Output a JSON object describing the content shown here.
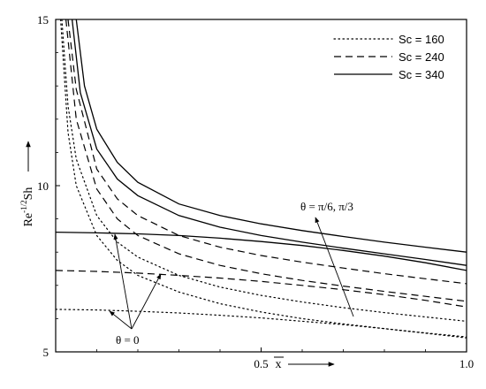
{
  "chart_data": {
    "type": "line",
    "xlabel": "x",
    "ylabel": "Re-1/2Sh",
    "xlim": [
      0.0,
      1.0
    ],
    "ylim": [
      5,
      15
    ],
    "x_ticks": [
      {
        "value": 0.5,
        "label": "0.5"
      },
      {
        "value": 1.0,
        "label": "1.0"
      }
    ],
    "y_ticks": [
      {
        "value": 5,
        "label": "5"
      },
      {
        "value": 10,
        "label": "10"
      },
      {
        "value": 15,
        "label": "15"
      }
    ],
    "legend": {
      "position": "top-right",
      "entries": [
        {
          "label": "Sc = 160",
          "dash": "dotted"
        },
        {
          "label": "Sc = 240",
          "dash": "dashed"
        },
        {
          "label": "Sc = 340",
          "dash": "solid"
        }
      ]
    },
    "annotations": [
      {
        "text": "θ = π/6, π/3"
      },
      {
        "text": "θ = 0"
      }
    ],
    "series": [
      {
        "sc": "Sc = 340",
        "dash": "solid",
        "theta": "0",
        "x": [
          0.0,
          0.1,
          0.2,
          0.3,
          0.4,
          0.5,
          0.6,
          0.7,
          0.8,
          0.9,
          1.0
        ],
        "y": [
          8.6,
          8.58,
          8.55,
          8.5,
          8.42,
          8.32,
          8.2,
          8.05,
          7.88,
          7.68,
          7.45
        ]
      },
      {
        "sc": "Sc = 240",
        "dash": "dashed",
        "theta": "0",
        "x": [
          0.0,
          0.1,
          0.2,
          0.3,
          0.4,
          0.5,
          0.6,
          0.7,
          0.8,
          0.9,
          1.0
        ],
        "y": [
          7.45,
          7.42,
          7.37,
          7.3,
          7.22,
          7.12,
          7.0,
          6.87,
          6.72,
          6.55,
          6.35
        ]
      },
      {
        "sc": "Sc = 160",
        "dash": "dotted",
        "theta": "0",
        "x": [
          0.0,
          0.1,
          0.2,
          0.3,
          0.4,
          0.5,
          0.6,
          0.7,
          0.8,
          0.9,
          1.0
        ],
        "y": [
          6.28,
          6.26,
          6.22,
          6.17,
          6.1,
          6.02,
          5.92,
          5.82,
          5.7,
          5.56,
          5.42
        ]
      },
      {
        "sc": "Sc = 340",
        "dash": "solid",
        "theta": "π/6",
        "x": [
          0.05,
          0.07,
          0.1,
          0.15,
          0.2,
          0.3,
          0.4,
          0.5,
          0.6,
          0.7,
          0.8,
          0.9,
          1.0
        ],
        "y": [
          15.0,
          13.0,
          11.7,
          10.7,
          10.1,
          9.45,
          9.1,
          8.85,
          8.65,
          8.47,
          8.3,
          8.15,
          8.0
        ]
      },
      {
        "sc": "Sc = 340",
        "dash": "solid",
        "theta": "π/3",
        "x": [
          0.04,
          0.06,
          0.1,
          0.15,
          0.2,
          0.3,
          0.4,
          0.5,
          0.6,
          0.7,
          0.8,
          0.9,
          1.0
        ],
        "y": [
          15.0,
          12.8,
          11.1,
          10.2,
          9.7,
          9.1,
          8.75,
          8.5,
          8.3,
          8.12,
          7.95,
          7.78,
          7.6
        ]
      },
      {
        "sc": "Sc = 240",
        "dash": "dashed",
        "theta": "π/6",
        "x": [
          0.03,
          0.05,
          0.1,
          0.15,
          0.2,
          0.3,
          0.4,
          0.5,
          0.6,
          0.7,
          0.8,
          0.9,
          1.0
        ],
        "y": [
          15.0,
          12.9,
          10.5,
          9.6,
          9.1,
          8.5,
          8.15,
          7.9,
          7.7,
          7.52,
          7.35,
          7.2,
          7.05
        ]
      },
      {
        "sc": "Sc = 240",
        "dash": "dashed",
        "theta": "π/3",
        "x": [
          0.025,
          0.05,
          0.1,
          0.15,
          0.2,
          0.3,
          0.4,
          0.5,
          0.6,
          0.7,
          0.8,
          0.9,
          1.0
        ],
        "y": [
          15.0,
          12.0,
          9.9,
          9.0,
          8.5,
          7.95,
          7.6,
          7.35,
          7.15,
          6.98,
          6.82,
          6.67,
          6.52
        ]
      },
      {
        "sc": "Sc = 160",
        "dash": "dotted",
        "theta": "π/6",
        "x": [
          0.015,
          0.03,
          0.05,
          0.1,
          0.15,
          0.2,
          0.3,
          0.4,
          0.5,
          0.6,
          0.7,
          0.8,
          0.9,
          1.0
        ],
        "y": [
          15.0,
          12.4,
          10.8,
          9.1,
          8.3,
          7.85,
          7.3,
          6.95,
          6.7,
          6.5,
          6.33,
          6.18,
          6.05,
          5.92
        ]
      },
      {
        "sc": "Sc = 160",
        "dash": "dotted",
        "theta": "π/3",
        "x": [
          0.012,
          0.03,
          0.05,
          0.1,
          0.15,
          0.2,
          0.3,
          0.4,
          0.5,
          0.6,
          0.7,
          0.8,
          0.9,
          1.0
        ],
        "y": [
          15.0,
          11.6,
          10.0,
          8.5,
          7.75,
          7.3,
          6.8,
          6.45,
          6.2,
          6.0,
          5.84,
          5.7,
          5.57,
          5.45
        ]
      }
    ]
  }
}
